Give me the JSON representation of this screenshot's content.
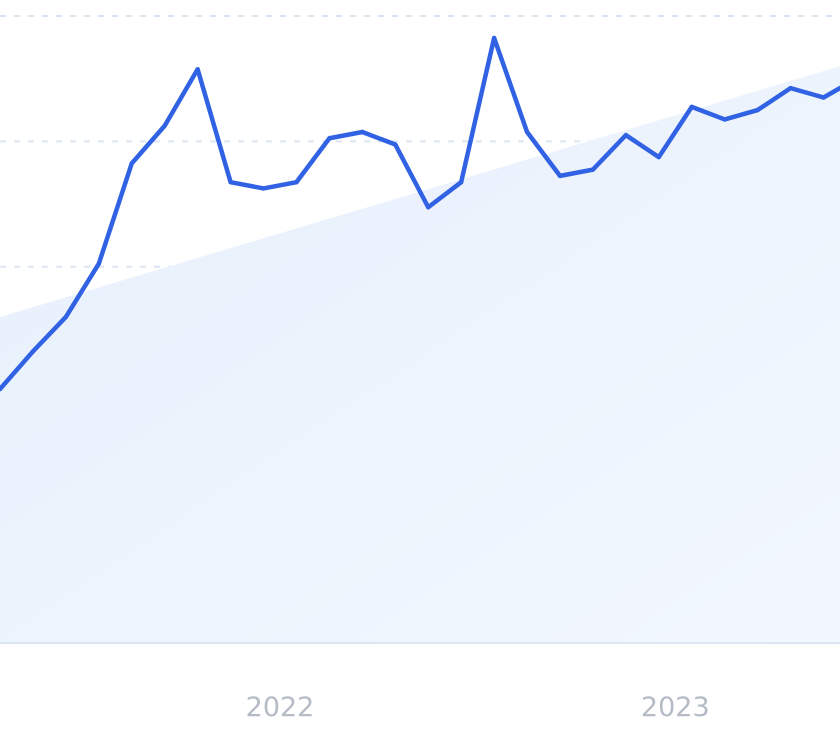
{
  "chart_data": {
    "type": "line",
    "title": "",
    "xlabel": "",
    "ylabel": "",
    "x_tick_labels": [
      {
        "label": "2022",
        "x": 9
      },
      {
        "label": "2023",
        "x": 21
      }
    ],
    "xlim": [
      0.5,
      26
    ],
    "ylim": [
      0,
      100
    ],
    "grid": true,
    "colors": {
      "line": "#3162e3",
      "area": "#e8f1fd",
      "grid": "#dbe6f5",
      "tick": "#b5bcc6"
    },
    "series": [
      {
        "name": "",
        "x": [
          0.5,
          1.5,
          2.5,
          3.5,
          4.5,
          5.5,
          6.5,
          7.5,
          8.5,
          9.5,
          10.5,
          11.5,
          12.5,
          13.5,
          14.5,
          15.5,
          16.5,
          17.5,
          18.5,
          19.5,
          20.5,
          21.5,
          22.5,
          23.5,
          24.5,
          25.5,
          26.5
        ],
        "values": [
          40.5,
          46.5,
          52.0,
          60.5,
          76.5,
          82.5,
          91.5,
          73.5,
          72.5,
          73.5,
          80.5,
          81.5,
          79.5,
          69.5,
          73.5,
          96.5,
          81.5,
          74.5,
          75.5,
          81.0,
          77.5,
          85.5,
          83.5,
          85.0,
          88.5,
          87.0,
          90.0
        ]
      },
      {
        "name": "",
        "style": "area",
        "x": [
          0.5,
          26
        ],
        "values": [
          52,
          92
        ]
      }
    ]
  }
}
